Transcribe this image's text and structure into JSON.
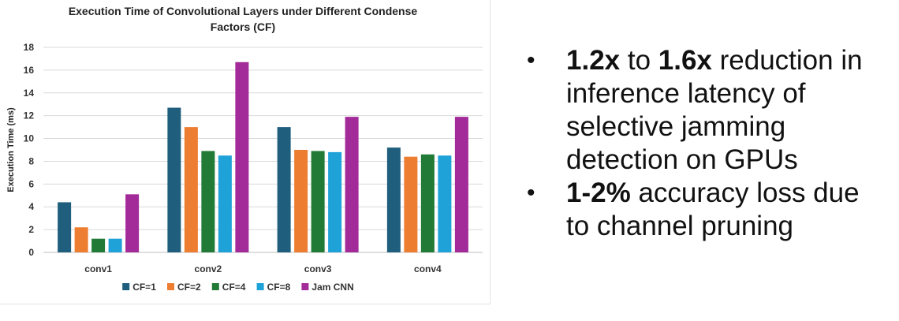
{
  "chart_data": {
    "type": "bar",
    "title_lines": [
      "Execution Time of Convolutional Layers under Different Condense",
      "Factors (CF)"
    ],
    "xlabel": "",
    "ylabel": "Execution Time (ms)",
    "ylim": [
      0,
      18
    ],
    "yticks": [
      0,
      2,
      4,
      6,
      8,
      10,
      12,
      14,
      16,
      18
    ],
    "grid": true,
    "legend_position": "bottom",
    "categories": [
      "conv1",
      "conv2",
      "conv3",
      "conv4"
    ],
    "series": [
      {
        "name": "CF=1",
        "color": "#1f5f7d",
        "values": [
          4.4,
          12.7,
          11.0,
          9.2
        ]
      },
      {
        "name": "CF=2",
        "color": "#ed7d31",
        "values": [
          2.2,
          11.0,
          9.0,
          8.4
        ]
      },
      {
        "name": "CF=4",
        "color": "#217b36",
        "values": [
          1.2,
          8.9,
          8.9,
          8.6
        ]
      },
      {
        "name": "CF=8",
        "color": "#1fa2d8",
        "values": [
          1.2,
          8.5,
          8.8,
          8.5
        ]
      },
      {
        "name": "Jam CNN",
        "color": "#a32a99",
        "values": [
          5.1,
          16.7,
          11.9,
          11.9
        ]
      }
    ]
  },
  "bullets": [
    {
      "bold": "1.2x",
      "t1": " to ",
      "bold2": "1.6x",
      "t2": " reduction in inference latency of selective jamming detection on GPUs"
    },
    {
      "bold": "1-2%",
      "t1": " accuracy loss due to channel pruning",
      "bold2": "",
      "t2": ""
    }
  ],
  "bullet_symbol": "•"
}
